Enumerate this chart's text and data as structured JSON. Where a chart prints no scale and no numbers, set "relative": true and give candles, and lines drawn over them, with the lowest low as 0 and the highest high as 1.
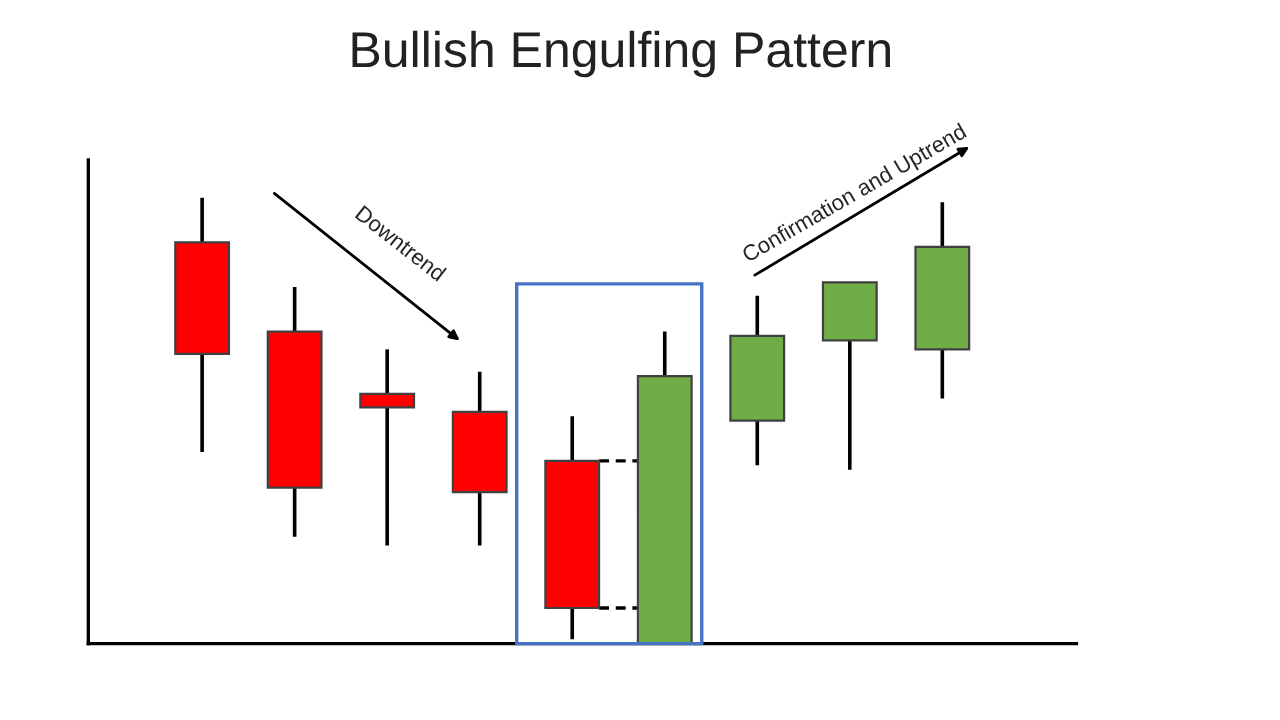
{
  "chart_data": {
    "type": "candlestick",
    "title": "Bullish Engulfing Pattern",
    "relative": true,
    "categories": [
      null,
      null,
      null,
      null,
      null,
      null,
      null,
      null,
      null
    ],
    "ohlc": [
      [
        0.9,
        1.0,
        0.43,
        0.65
      ],
      [
        0.7,
        0.8,
        0.24,
        0.35
      ],
      [
        0.56,
        0.66,
        0.22,
        0.53
      ],
      [
        0.52,
        0.61,
        0.22,
        0.34
      ],
      [
        0.41,
        0.51,
        0.01,
        0.08
      ],
      [
        0.0,
        0.7,
        0.0,
        0.6
      ],
      [
        0.5,
        0.78,
        0.4,
        0.69
      ],
      [
        0.68,
        0.81,
        0.39,
        0.81
      ],
      [
        0.66,
        0.99,
        0.55,
        0.89
      ]
    ],
    "colors": [
      "#ff0000",
      "#ff0000",
      "#ff0000",
      "#ff0000",
      "#ff0000",
      "#70ad47",
      "#70ad47",
      "#70ad47",
      "#70ad47"
    ],
    "annotations": [
      "Downtrend",
      "Confirmation and Uptrend"
    ]
  }
}
